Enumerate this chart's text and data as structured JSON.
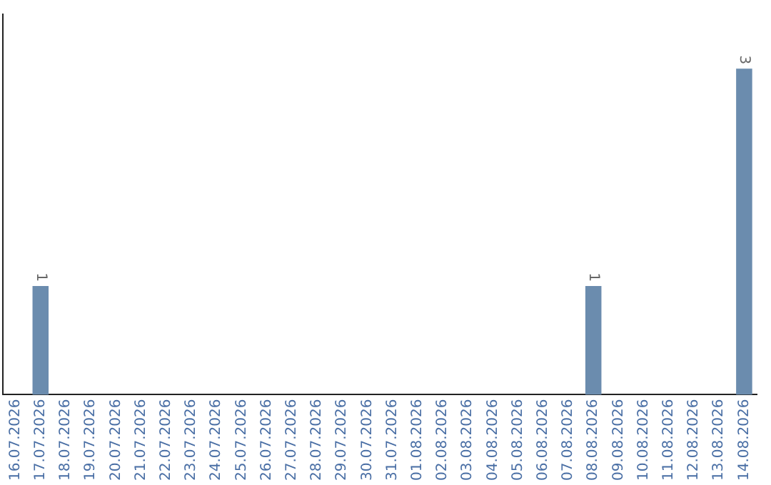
{
  "chart_data": {
    "type": "bar",
    "categories": [
      "16.07.2026",
      "17.07.2026",
      "18.07.2026",
      "19.07.2026",
      "20.07.2026",
      "21.07.2026",
      "22.07.2026",
      "23.07.2026",
      "24.07.2026",
      "25.07.2026",
      "26.07.2026",
      "27.07.2026",
      "28.07.2026",
      "29.07.2026",
      "30.07.2026",
      "31.07.2026",
      "01.08.2026",
      "02.08.2026",
      "03.08.2026",
      "04.08.2026",
      "05.08.2026",
      "06.08.2026",
      "07.08.2026",
      "08.08.2026",
      "09.08.2026",
      "10.08.2026",
      "11.08.2026",
      "12.08.2026",
      "13.08.2026",
      "14.08.2026"
    ],
    "values": [
      0,
      1,
      0,
      0,
      0,
      0,
      0,
      0,
      0,
      0,
      0,
      0,
      0,
      0,
      0,
      0,
      0,
      0,
      0,
      0,
      0,
      0,
      0,
      1,
      0,
      0,
      0,
      0,
      0,
      3
    ],
    "value_labels": [
      null,
      "1",
      null,
      null,
      null,
      null,
      null,
      null,
      null,
      null,
      null,
      null,
      null,
      null,
      null,
      null,
      null,
      null,
      null,
      null,
      null,
      null,
      null,
      "1",
      null,
      null,
      null,
      null,
      null,
      "3"
    ],
    "color": "#6b8cae",
    "tick_labels": "x",
    "grid": false,
    "legend": false
  }
}
